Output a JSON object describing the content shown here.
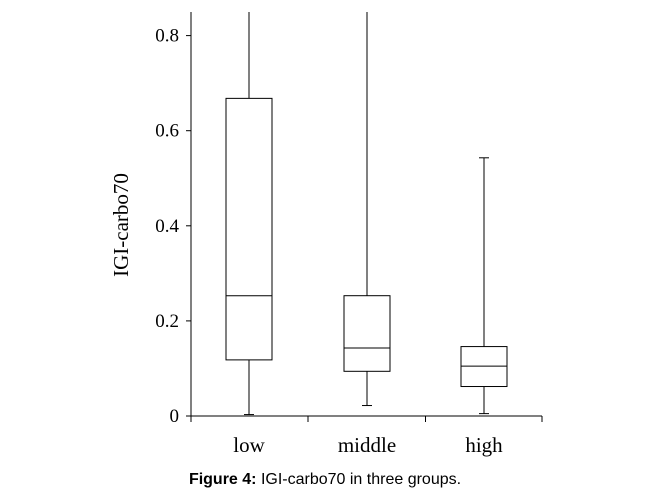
{
  "caption": {
    "label": "Figure 4:",
    "text": " IGI-carbo70 in three groups."
  },
  "chart_data": {
    "type": "boxplot",
    "ylabel": "IGI-carbo70",
    "xlabel": "",
    "ylim": [
      0,
      0.85
    ],
    "yticks": [
      0,
      0.2,
      0.4,
      0.6,
      0.8
    ],
    "ytick_labels": [
      "0",
      "0.2",
      "0.4",
      "0.6",
      "0.8"
    ],
    "categories": [
      "low",
      "middle",
      "high"
    ],
    "boxes": [
      {
        "category": "low",
        "whisker_low": 0.003,
        "q1": 0.118,
        "median": 0.253,
        "q3": 0.668,
        "whisker_high": 0.85
      },
      {
        "category": "middle",
        "whisker_low": 0.022,
        "q1": 0.094,
        "median": 0.143,
        "q3": 0.253,
        "whisker_high": 0.85
      },
      {
        "category": "high",
        "whisker_low": 0.005,
        "q1": 0.062,
        "median": 0.105,
        "q3": 0.146,
        "whisker_high": 0.543
      }
    ],
    "grid": false,
    "legend": "none"
  }
}
